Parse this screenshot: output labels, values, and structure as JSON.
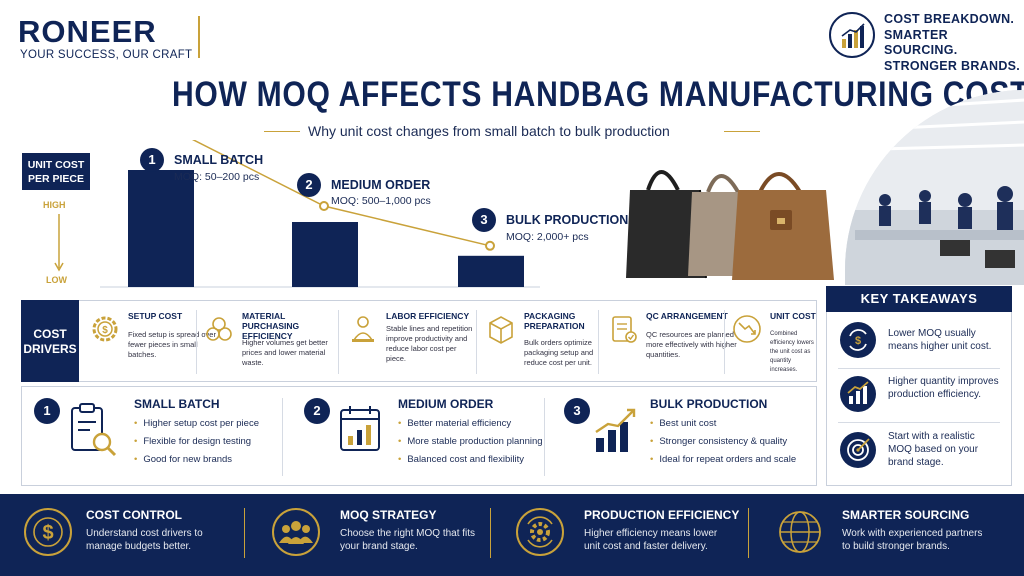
{
  "brand": {
    "name": "RONEER",
    "tagline": "YOUR SUCCESS, OUR CRAFT"
  },
  "badge": {
    "line1": "COST BREAKDOWN.",
    "line2": "SMARTER SOURCING.",
    "line3": "STRONGER BRANDS.",
    "icon": "bar-chart-icon"
  },
  "title": "HOW MOQ AFFECTS HANDBAG MANUFACTURING COST",
  "subtitle": "Why unit cost changes from small batch to bulk production",
  "chart": {
    "y_label_line1": "UNIT COST",
    "y_label_line2": "PER PIECE",
    "high": "HIGH",
    "low": "LOW",
    "steps": [
      {
        "num": "1",
        "title": "SMALL BATCH",
        "moq": "MOQ: 50–200 pcs"
      },
      {
        "num": "2",
        "title": "MEDIUM ORDER",
        "moq": "MOQ: 500–1,000 pcs"
      },
      {
        "num": "3",
        "title": "BULK PRODUCTION",
        "moq": "MOQ: 2,000+ pcs"
      }
    ]
  },
  "chart_data": {
    "type": "bar",
    "categories": [
      "SMALL BATCH",
      "MEDIUM ORDER",
      "BULK PRODUCTION"
    ],
    "values": [
      90,
      50,
      24
    ],
    "ylabel": "UNIT COST PER PIECE",
    "ylim": [
      0,
      100
    ],
    "colors": {
      "bar": "#0f2456",
      "trend": "#c9a23a"
    }
  },
  "drivers": {
    "label_line1": "COST",
    "label_line2": "DRIVERS",
    "items": [
      {
        "title": "SETUP COST",
        "desc": "Fixed setup is spread over fewer pieces in small batches.",
        "icon": "gear-dollar-icon"
      },
      {
        "title": "MATERIAL PURCHASING EFFICIENCY",
        "desc": "Higher volumes get better prices and lower material waste.",
        "icon": "material-rolls-icon"
      },
      {
        "title": "LABOR EFFICIENCY",
        "desc": "Stable lines and repetition improve productivity and reduce labor cost per piece.",
        "icon": "worker-icon"
      },
      {
        "title": "PACKAGING PREPARATION",
        "desc": "Bulk orders optimize packaging setup and reduce cost per unit.",
        "icon": "box-icon"
      },
      {
        "title": "QC ARRANGEMENT",
        "desc": "QC resources are planned more effectively with higher quantities.",
        "icon": "checklist-icon"
      },
      {
        "title": "UNIT COST",
        "desc": "Combined efficiency lowers the unit cost as quantity increases.",
        "icon": "downtrend-icon"
      }
    ]
  },
  "tiers": [
    {
      "num": "1",
      "title": "SMALL BATCH",
      "icon": "clipboard-search-icon",
      "items": [
        "Higher setup cost per piece",
        "Flexible for design testing",
        "Good for new brands"
      ]
    },
    {
      "num": "2",
      "title": "MEDIUM ORDER",
      "icon": "calendar-chart-icon",
      "items": [
        "Better material efficiency",
        "More stable production planning",
        "Balanced cost and flexibility"
      ]
    },
    {
      "num": "3",
      "title": "BULK PRODUCTION",
      "icon": "growth-bars-icon",
      "items": [
        "Best unit cost",
        "Stronger consistency & quality",
        "Ideal for repeat orders and scale"
      ]
    }
  ],
  "takeaways": {
    "title": "KEY TAKEAWAYS",
    "items": [
      {
        "text": "Lower MOQ usually means higher unit cost.",
        "icon": "cycle-dollar-icon"
      },
      {
        "text": "Higher quantity improves production efficiency.",
        "icon": "bar-chart-icon"
      },
      {
        "text": "Start with a realistic MOQ based on your brand stage.",
        "icon": "target-icon"
      }
    ]
  },
  "footer": [
    {
      "title": "COST CONTROL",
      "desc": "Understand cost drivers to manage budgets better.",
      "icon": "dollar-coin-icon"
    },
    {
      "title": "MOQ STRATEGY",
      "desc": "Choose the right MOQ that fits your brand stage.",
      "icon": "team-icon"
    },
    {
      "title": "PRODUCTION EFFICIENCY",
      "desc": "Higher efficiency means lower unit cost and faster delivery.",
      "icon": "gear-cycle-icon"
    },
    {
      "title": "SMARTER SOURCING",
      "desc": "Work with experienced partners to build stronger brands.",
      "icon": "globe-icon"
    }
  ],
  "colors": {
    "navy": "#0f2456",
    "gold": "#c9a23a"
  }
}
